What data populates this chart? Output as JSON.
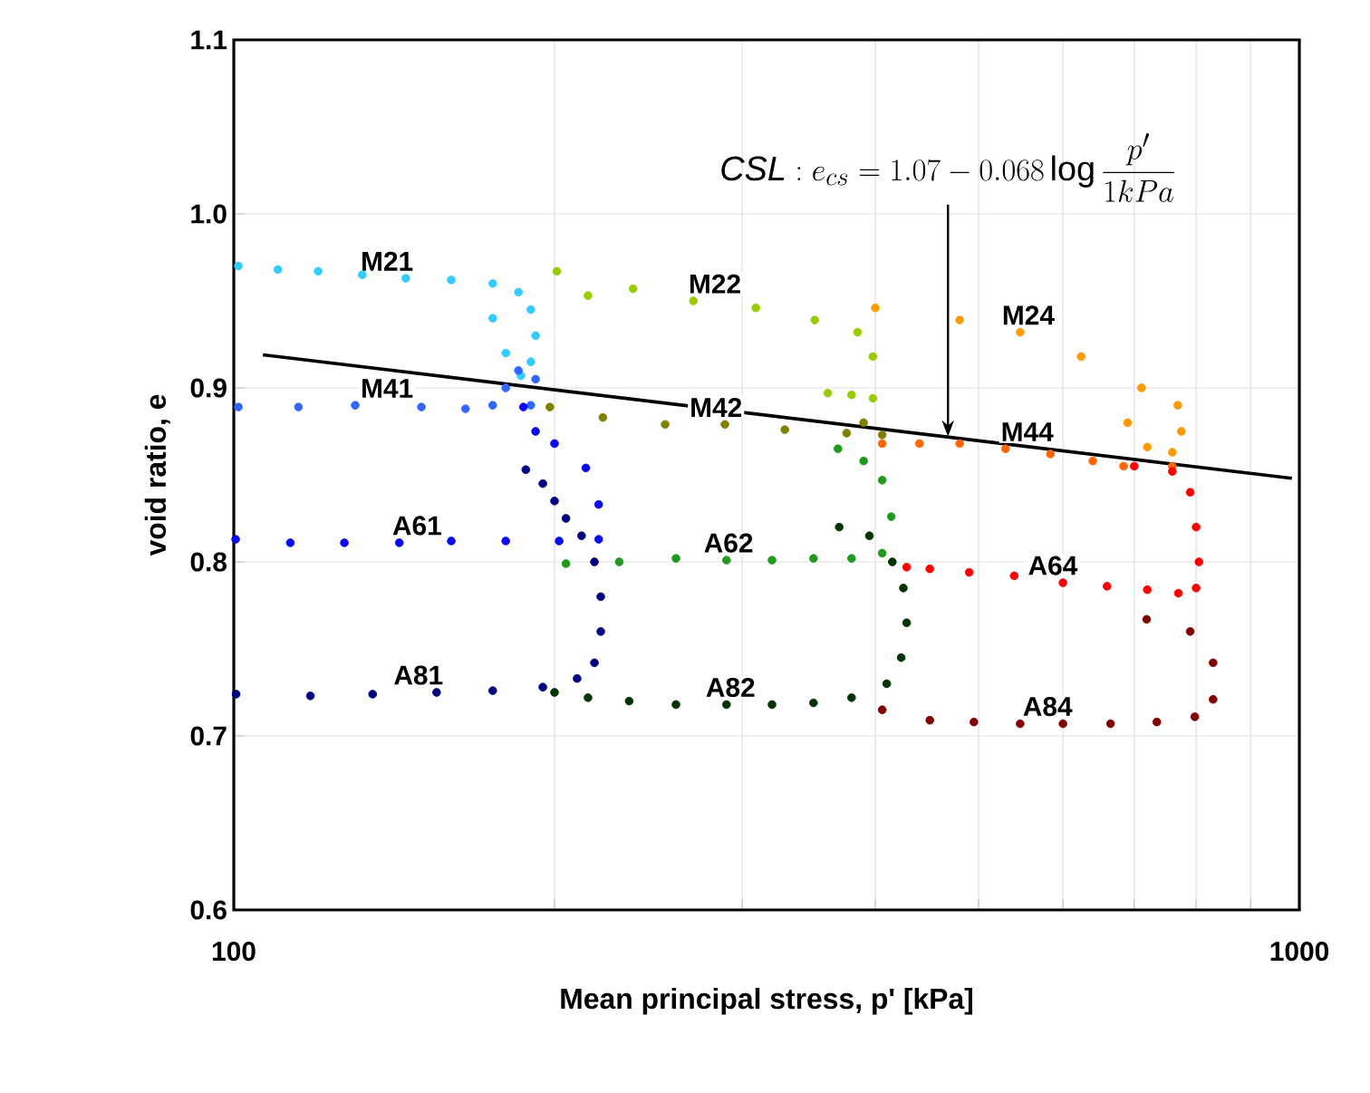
{
  "chart_data": {
    "type": "scatter",
    "xlabel": "Mean principal stress, p' [kPa]",
    "ylabel": "void ratio, e",
    "log": "x",
    "grid": true,
    "marker": "circle",
    "xlim": [
      100,
      1000
    ],
    "ylim": [
      0.6,
      1.1
    ],
    "xticks": [
      100,
      {
        "value": 200,
        "label": null
      },
      {
        "value": 300,
        "label": null
      },
      {
        "value": 400,
        "label": null
      },
      {
        "value": 500,
        "label": null
      },
      {
        "value": 600,
        "label": null
      },
      {
        "value": 700,
        "label": null
      },
      {
        "value": 800,
        "label": null
      },
      {
        "value": 900,
        "label": null
      },
      1000
    ],
    "yticks": [
      0.6,
      0.7,
      0.8,
      0.9,
      {
        "value": 1.0,
        "label": "1.0"
      },
      1.1
    ],
    "annotations": [
      {
        "text": "\\mathit{CSL}: e_{cs}=1.07-0.068\\log\\dfrac{p'}{1kPa}",
        "x": 468,
        "y": 0.872
      }
    ],
    "series": [
      {
        "name": "M21",
        "color": "#33ccff",
        "x": [
          101,
          110,
          120,
          132,
          145,
          160,
          175,
          185,
          190,
          192,
          190,
          186,
          180,
          175
        ],
        "values": [
          0.97,
          0.968,
          0.967,
          0.965,
          0.963,
          0.962,
          0.96,
          0.955,
          0.945,
          0.93,
          0.915,
          0.907,
          0.92,
          0.94
        ]
      },
      {
        "name": "M41",
        "color": "#3366ff",
        "x": [
          101,
          115,
          130,
          150,
          165,
          175,
          180,
          185,
          192,
          190
        ],
        "values": [
          0.889,
          0.889,
          0.89,
          0.889,
          0.888,
          0.89,
          0.9,
          0.91,
          0.905,
          0.89
        ]
      },
      {
        "name": "A61",
        "color": "#0a0aee",
        "x": [
          187,
          192,
          200,
          214,
          220,
          220,
          202,
          180,
          160,
          143,
          127,
          113,
          100.4
        ],
        "values": [
          0.889,
          0.875,
          0.868,
          0.854,
          0.833,
          0.813,
          0.812,
          0.812,
          0.812,
          0.811,
          0.811,
          0.811,
          0.813
        ]
      },
      {
        "name": "A81",
        "color": "#000080",
        "x": [
          188,
          195,
          200,
          205,
          212,
          218,
          221,
          221,
          218,
          210,
          195,
          175,
          155,
          135,
          118,
          100.5
        ],
        "values": [
          0.853,
          0.845,
          0.835,
          0.825,
          0.815,
          0.8,
          0.78,
          0.76,
          0.742,
          0.733,
          0.728,
          0.726,
          0.725,
          0.724,
          0.723,
          0.724
        ]
      },
      {
        "name": "M22",
        "color": "#99cc00",
        "x": [
          201,
          215,
          237,
          270,
          309,
          351,
          385,
          398,
          398,
          380,
          361
        ],
        "values": [
          0.967,
          0.953,
          0.957,
          0.95,
          0.946,
          0.939,
          0.932,
          0.918,
          0.894,
          0.896,
          0.897
        ]
      },
      {
        "name": "M42",
        "color": "#808000",
        "x": [
          198,
          222,
          254,
          289,
          329,
          376,
          406,
          390
        ],
        "values": [
          0.889,
          0.883,
          0.879,
          0.879,
          0.876,
          0.874,
          0.873,
          0.88
        ]
      },
      {
        "name": "A62",
        "color": "#1f9a1f",
        "x": [
          369,
          390,
          406,
          414,
          406,
          380,
          350,
          320,
          290,
          260,
          230,
          205
        ],
        "values": [
          0.865,
          0.858,
          0.847,
          0.826,
          0.805,
          0.802,
          0.802,
          0.801,
          0.801,
          0.802,
          0.8,
          0.799
        ]
      },
      {
        "name": "A82",
        "color": "#003300",
        "x": [
          370,
          395,
          415,
          425,
          428,
          423,
          410,
          380,
          350,
          320,
          290,
          260,
          235,
          215,
          200
        ],
        "values": [
          0.82,
          0.815,
          0.8,
          0.785,
          0.765,
          0.745,
          0.73,
          0.722,
          0.719,
          0.718,
          0.718,
          0.718,
          0.72,
          0.722,
          0.725
        ]
      },
      {
        "name": "M24",
        "color": "#ff9900",
        "x": [
          400,
          480,
          547,
          624,
          711,
          769,
          775,
          760,
          720,
          690
        ],
        "values": [
          0.946,
          0.939,
          0.932,
          0.918,
          0.9,
          0.89,
          0.875,
          0.863,
          0.866,
          0.88
        ]
      },
      {
        "name": "M44",
        "color": "#ff6600",
        "x": [
          406,
          440,
          480,
          530,
          584,
          640,
          684,
          760
        ],
        "values": [
          0.868,
          0.868,
          0.868,
          0.865,
          0.862,
          0.858,
          0.855,
          0.855
        ]
      },
      {
        "name": "A64",
        "color": "#ff0000",
        "x": [
          700,
          760,
          790,
          800,
          805,
          800,
          770,
          720,
          660,
          600,
          540,
          490,
          450,
          428
        ],
        "values": [
          0.855,
          0.852,
          0.84,
          0.82,
          0.8,
          0.785,
          0.782,
          0.784,
          0.786,
          0.788,
          0.792,
          0.794,
          0.796,
          0.797
        ]
      },
      {
        "name": "A84",
        "color": "#800000",
        "x": [
          719,
          790,
          830,
          830,
          798,
          735,
          665,
          600,
          547,
          495,
          450,
          406
        ],
        "values": [
          0.767,
          0.76,
          0.742,
          0.721,
          0.711,
          0.708,
          0.707,
          0.707,
          0.707,
          0.708,
          0.709,
          0.715
        ]
      },
      {
        "type": "line",
        "marker": "none",
        "color": "#000000",
        "x": [
          106.5,
          984
        ],
        "values": [
          0.919,
          0.848
        ]
      }
    ]
  }
}
